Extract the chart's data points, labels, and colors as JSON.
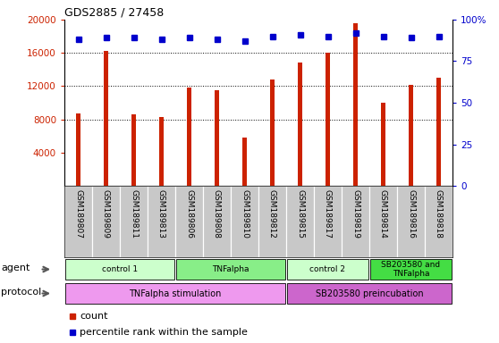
{
  "title": "GDS2885 / 27458",
  "samples": [
    "GSM189807",
    "GSM189809",
    "GSM189811",
    "GSM189813",
    "GSM189806",
    "GSM189808",
    "GSM189810",
    "GSM189812",
    "GSM189815",
    "GSM189817",
    "GSM189819",
    "GSM189814",
    "GSM189816",
    "GSM189818"
  ],
  "counts": [
    8700,
    16200,
    8600,
    8300,
    11800,
    11500,
    5800,
    12800,
    14800,
    16000,
    19600,
    10000,
    12100,
    13000
  ],
  "percentiles": [
    88,
    89,
    89,
    88,
    89,
    88,
    87,
    90,
    91,
    90,
    92,
    90,
    89,
    90
  ],
  "ylim_left": [
    0,
    20000
  ],
  "ylim_right": [
    0,
    100
  ],
  "yticks_left": [
    4000,
    8000,
    12000,
    16000,
    20000
  ],
  "yticks_right": [
    0,
    25,
    50,
    75,
    100
  ],
  "bar_color": "#cc2200",
  "dot_color": "#0000cc",
  "agent_groups": [
    {
      "label": "control 1",
      "start": 0,
      "end": 4,
      "color": "#ccffcc"
    },
    {
      "label": "TNFalpha",
      "start": 4,
      "end": 8,
      "color": "#88ee88"
    },
    {
      "label": "control 2",
      "start": 8,
      "end": 11,
      "color": "#ccffcc"
    },
    {
      "label": "SB203580 and\nTNFalpha",
      "start": 11,
      "end": 14,
      "color": "#44dd44"
    }
  ],
  "protocol_groups": [
    {
      "label": "TNFalpha stimulation",
      "start": 0,
      "end": 8,
      "color": "#ee99ee"
    },
    {
      "label": "SB203580 preincubation",
      "start": 8,
      "end": 14,
      "color": "#cc66cc"
    }
  ],
  "agent_label": "agent",
  "protocol_label": "protocol",
  "grid_color": "#000000",
  "sample_bg": "#c8c8c8",
  "chart_bg": "#ffffff"
}
